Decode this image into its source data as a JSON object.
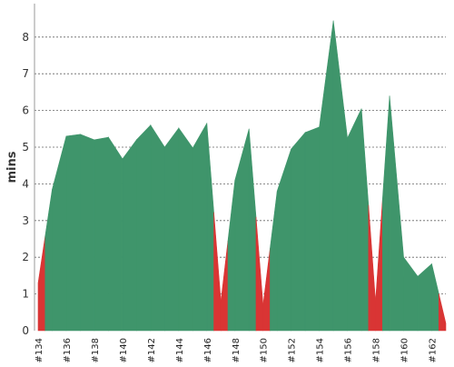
{
  "chart_data": {
    "type": "area",
    "ylabel": "mins",
    "ylim": [
      0,
      9
    ],
    "yticks": [
      "0",
      "1",
      "2",
      "3",
      "4",
      "5",
      "6",
      "7",
      "8"
    ],
    "grid": true,
    "colors": {
      "success": "#3f956b",
      "failure": "#d93534"
    },
    "x": [
      134,
      135,
      136,
      137,
      138,
      139,
      140,
      141,
      142,
      143,
      144,
      145,
      146,
      147,
      148,
      149,
      150,
      151,
      152,
      153,
      154,
      155,
      156,
      157,
      158,
      159,
      160,
      161,
      162,
      163
    ],
    "x_labels": [
      "#134",
      "#136",
      "#138",
      "#140",
      "#142",
      "#144",
      "#146",
      "#148",
      "#150",
      "#152",
      "#154",
      "#156",
      "#158",
      "#160",
      "#162"
    ],
    "values": [
      1.3,
      3.85,
      5.3,
      5.35,
      5.2,
      5.27,
      4.68,
      5.2,
      5.6,
      5.0,
      5.52,
      4.98,
      5.65,
      0.8,
      4.1,
      5.5,
      0.7,
      3.8,
      4.95,
      5.4,
      5.55,
      8.45,
      5.25,
      6.05,
      0.8,
      6.4,
      2.0,
      1.48,
      1.82,
      0.2
    ],
    "status": [
      "failure",
      "success",
      "success",
      "success",
      "success",
      "success",
      "success",
      "success",
      "success",
      "success",
      "success",
      "success",
      "success",
      "failure",
      "success",
      "success",
      "failure",
      "success",
      "success",
      "success",
      "success",
      "success",
      "success",
      "success",
      "failure",
      "success",
      "success",
      "success",
      "success",
      "failure"
    ]
  }
}
